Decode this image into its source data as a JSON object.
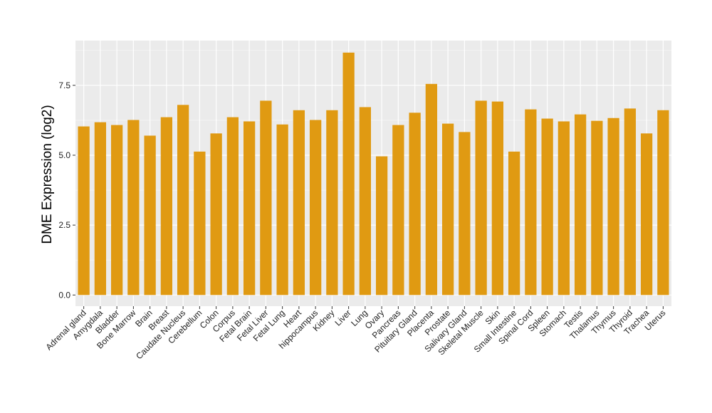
{
  "chart_data": {
    "type": "bar",
    "title": "",
    "xlabel": "",
    "ylabel": "DME Expression (log2)",
    "ylim": [
      -0.4,
      9.1
    ],
    "yticks": [
      0.0,
      2.5,
      5.0,
      7.5
    ],
    "ytick_labels": [
      "0.0",
      "2.5",
      "5.0",
      "7.5"
    ],
    "grid": true,
    "bar_color": "#E09A12",
    "panel_color": "#EBEBEB",
    "grid_major_color": "#FFFFFF",
    "categories": [
      "Adrenal gland",
      "Amygdala",
      "Bladder",
      "Bone Marrow",
      "Brain",
      "Breast",
      "Caudate Nucleus",
      "Cerebellum",
      "Colon",
      "Corpus",
      "Fetal Brain",
      "Fetal Liver",
      "Fetal Lung",
      "Heart",
      "hippocampus",
      "Kidney",
      "Liver",
      "Lung",
      "Ovary",
      "Pancreas",
      "Pituitary Gland",
      "Placenta",
      "Prostate",
      "Salivary Gland",
      "Skeletal Muscle",
      "Skin",
      "Small Intestine",
      "Spinal Cord",
      "Spleen",
      "Stomach",
      "Testis",
      "Thalamus",
      "Thymus",
      "Thyroid",
      "Trachea",
      "Uterus"
    ],
    "values": [
      6.03,
      6.18,
      6.08,
      6.26,
      5.7,
      6.36,
      6.8,
      5.13,
      5.78,
      6.36,
      6.21,
      6.95,
      6.1,
      6.61,
      6.26,
      6.61,
      8.67,
      6.72,
      4.96,
      6.08,
      6.52,
      7.55,
      6.13,
      5.83,
      6.95,
      6.92,
      5.13,
      6.64,
      6.31,
      6.21,
      6.46,
      6.23,
      6.33,
      6.67,
      5.78,
      6.61
    ]
  }
}
